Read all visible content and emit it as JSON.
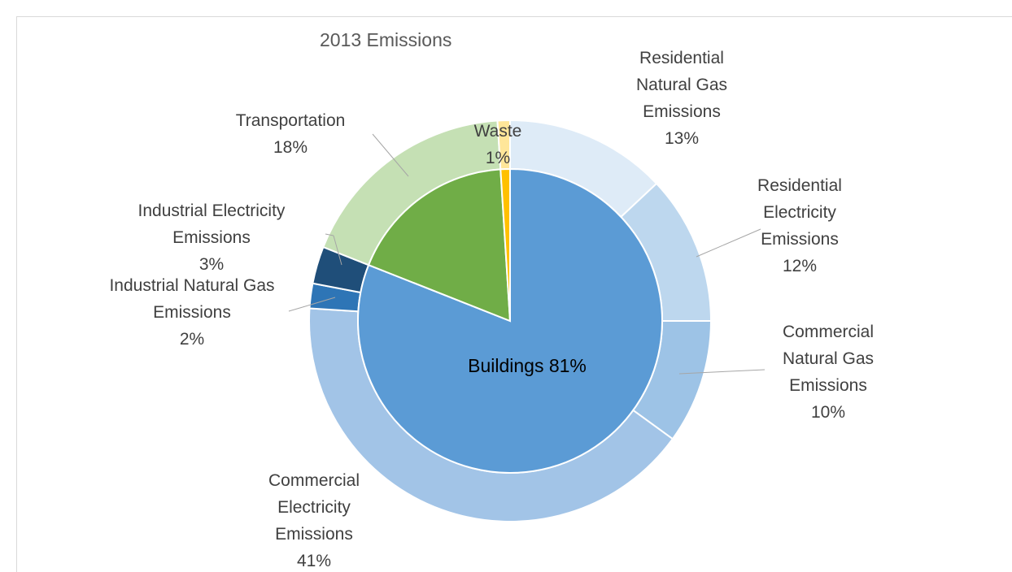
{
  "chart_data": {
    "type": "pie",
    "title": "2013 Emissions",
    "outer": {
      "categories": [
        "Residential Natural Gas Emissions",
        "Residential Electricity Emissions",
        "Commercial Natural Gas Emissions",
        "Commercial Electricity Emissions",
        "Industrial Natural Gas Emissions",
        "Industrial Electricity Emissions",
        "Transportation",
        "Waste"
      ],
      "values": [
        13,
        12,
        10,
        41,
        2,
        3,
        18,
        1
      ],
      "value_labels": [
        "13%",
        "12%",
        "10%",
        "41%",
        "2%",
        "3%",
        "18%",
        "1%"
      ],
      "colors": [
        "#deebf7",
        "#bdd7ee",
        "#9dc3e6",
        "#a2c4e7",
        "#2e75b6",
        "#1f4e79",
        "#c5e0b4",
        "#ffe699"
      ]
    },
    "inner": {
      "categories": [
        "Buildings",
        null,
        null
      ],
      "values": [
        81,
        18,
        1
      ],
      "value_labels": [
        "81%",
        null,
        null
      ],
      "colors": [
        "#5b9bd5",
        "#70ad47",
        "#ffc000"
      ]
    }
  }
}
